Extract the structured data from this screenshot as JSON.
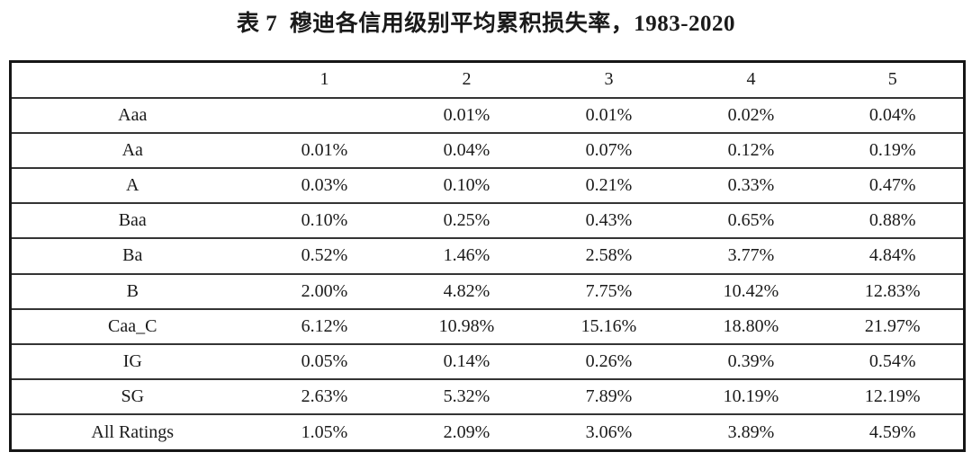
{
  "title": "表 7  穆迪各信用级别平均累积损失率，1983-2020",
  "table": {
    "columns": [
      "",
      "1",
      "2",
      "3",
      "4",
      "5"
    ],
    "rows": [
      {
        "label": "Aaa",
        "values": [
          "",
          "0.01%",
          "0.01%",
          "0.02%",
          "0.04%"
        ]
      },
      {
        "label": "Aa",
        "values": [
          "0.01%",
          "0.04%",
          "0.07%",
          "0.12%",
          "0.19%"
        ]
      },
      {
        "label": "A",
        "values": [
          "0.03%",
          "0.10%",
          "0.21%",
          "0.33%",
          "0.47%"
        ]
      },
      {
        "label": "Baa",
        "values": [
          "0.10%",
          "0.25%",
          "0.43%",
          "0.65%",
          "0.88%"
        ]
      },
      {
        "label": "Ba",
        "values": [
          "0.52%",
          "1.46%",
          "2.58%",
          "3.77%",
          "4.84%"
        ]
      },
      {
        "label": "B",
        "values": [
          "2.00%",
          "4.82%",
          "7.75%",
          "10.42%",
          "12.83%"
        ]
      },
      {
        "label": "Caa_C",
        "values": [
          "6.12%",
          "10.98%",
          "15.16%",
          "18.80%",
          "21.97%"
        ]
      },
      {
        "label": "IG",
        "values": [
          "0.05%",
          "0.14%",
          "0.26%",
          "0.39%",
          "0.54%"
        ]
      },
      {
        "label": "SG",
        "values": [
          "2.63%",
          "5.32%",
          "7.89%",
          "10.19%",
          "12.19%"
        ]
      },
      {
        "label": "All Ratings",
        "values": [
          "1.05%",
          "2.09%",
          "3.06%",
          "3.89%",
          "4.59%"
        ]
      }
    ]
  },
  "colors": {
    "text": "#1a1a1a",
    "outer_border": "#161616",
    "row_separator": "#343434",
    "background": "#ffffff"
  }
}
